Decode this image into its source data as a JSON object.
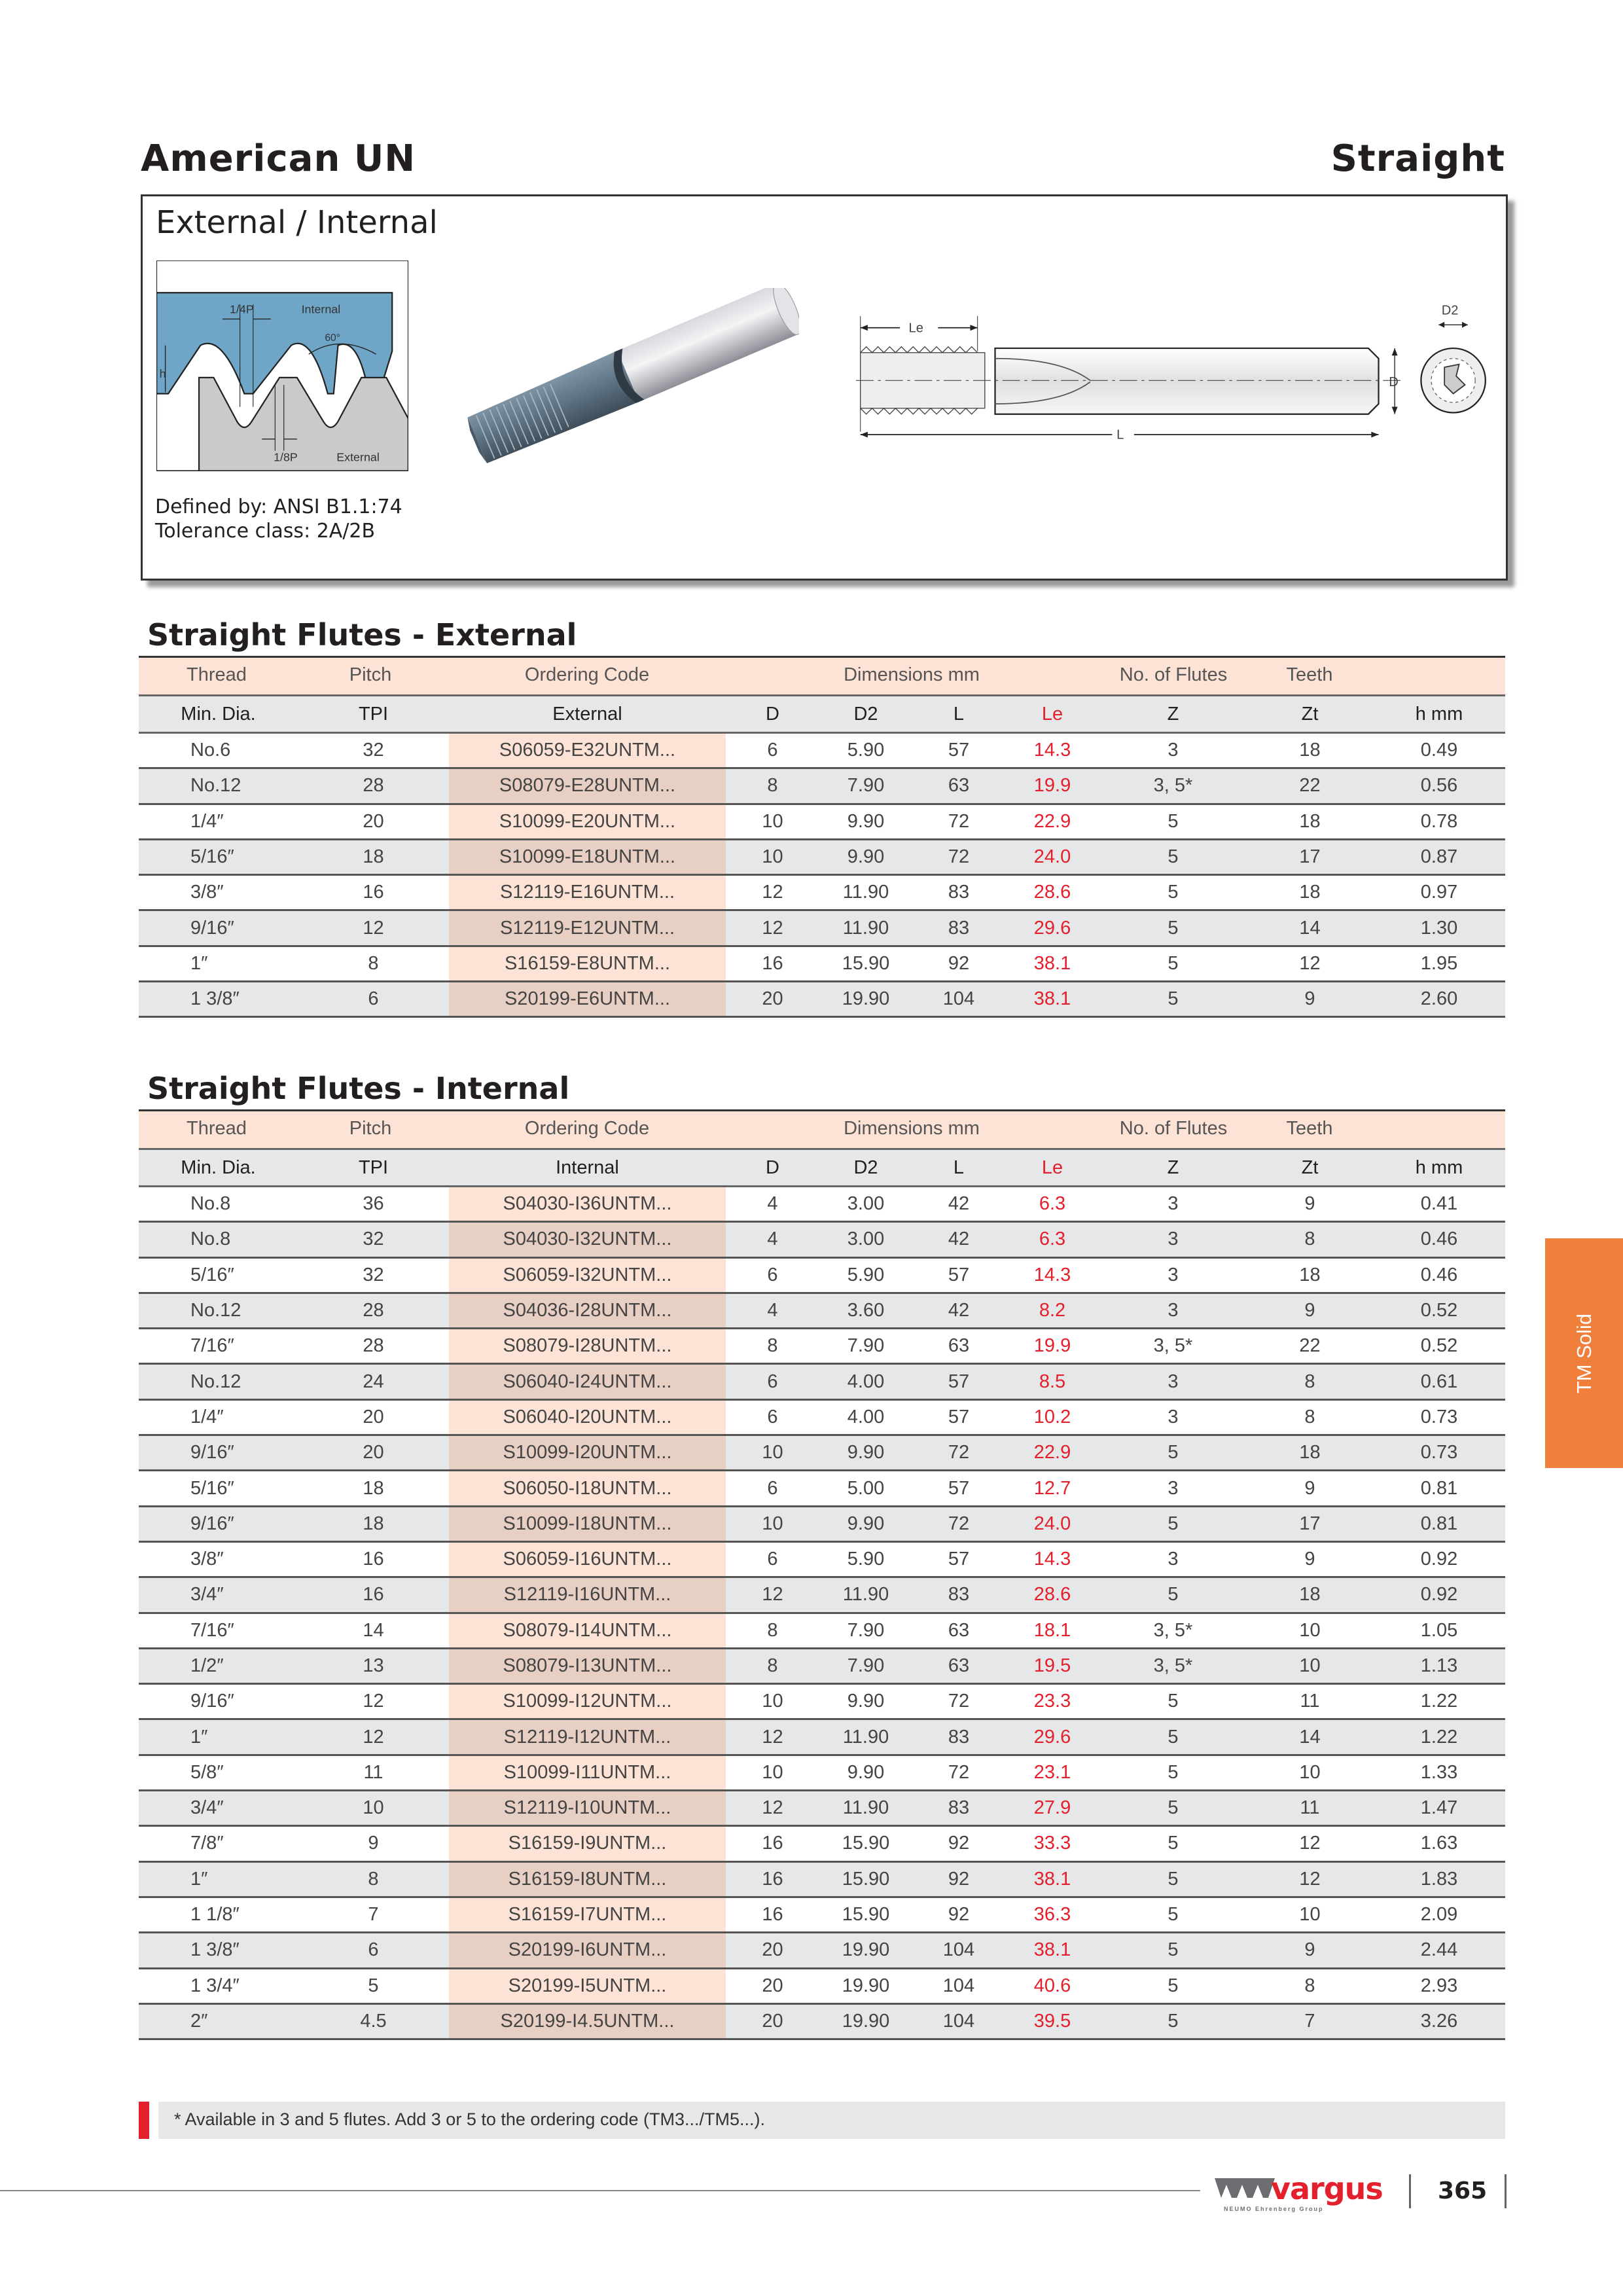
{
  "header": {
    "title_left": "American UN",
    "title_right": "Straight"
  },
  "intro": {
    "title": "External / Internal",
    "diagram_labels": {
      "quarter_p": "1/4P",
      "internal": "Internal",
      "angle": "60°",
      "h": "h",
      "eighth_p": "1/8P",
      "external": "External"
    },
    "drawing_labels": {
      "le": "Le",
      "l": "L",
      "d": "D",
      "d2": "D2"
    },
    "defined_by": "Defined by: ANSI B1.1:74",
    "tolerance": "Tolerance class: 2A/2B"
  },
  "colors": {
    "header_peach": "#fde3d5",
    "header_gray": "#e6e7e8",
    "le_red": "#e3202b",
    "side_tab_orange": "#f07f3c",
    "brand_red": "#e3202b"
  },
  "header_row1": [
    "Thread",
    "Pitch",
    "Ordering Code",
    "Dimensions mm",
    "No. of Flutes",
    "Teeth"
  ],
  "external": {
    "title": "Straight Flutes - External",
    "columns": [
      "Min. Dia.",
      "TPI",
      "External",
      "D",
      "D2",
      "L",
      "Le",
      "Z",
      "Zt",
      "h mm"
    ],
    "rows": [
      [
        "No.6",
        "32",
        "S06059-E32UNTM...",
        "6",
        "5.90",
        "57",
        "14.3",
        "3",
        "18",
        "0.49"
      ],
      [
        "No.12",
        "28",
        "S08079-E28UNTM...",
        "8",
        "7.90",
        "63",
        "19.9",
        "3, 5*",
        "22",
        "0.56"
      ],
      [
        "1/4″",
        "20",
        "S10099-E20UNTM...",
        "10",
        "9.90",
        "72",
        "22.9",
        "5",
        "18",
        "0.78"
      ],
      [
        "5/16″",
        "18",
        "S10099-E18UNTM...",
        "10",
        "9.90",
        "72",
        "24.0",
        "5",
        "17",
        "0.87"
      ],
      [
        "3/8″",
        "16",
        "S12119-E16UNTM...",
        "12",
        "11.90",
        "83",
        "28.6",
        "5",
        "18",
        "0.97"
      ],
      [
        "9/16″",
        "12",
        "S12119-E12UNTM...",
        "12",
        "11.90",
        "83",
        "29.6",
        "5",
        "14",
        "1.30"
      ],
      [
        "1″",
        "8",
        "S16159-E8UNTM...",
        "16",
        "15.90",
        "92",
        "38.1",
        "5",
        "12",
        "1.95"
      ],
      [
        "1 3/8″",
        "6",
        "S20199-E6UNTM...",
        "20",
        "19.90",
        "104",
        "38.1",
        "5",
        "9",
        "2.60"
      ]
    ]
  },
  "internal": {
    "title": "Straight Flutes - Internal",
    "columns": [
      "Min. Dia.",
      "TPI",
      "Internal",
      "D",
      "D2",
      "L",
      "Le",
      "Z",
      "Zt",
      "h mm"
    ],
    "rows": [
      [
        "No.8",
        "36",
        "S04030-I36UNTM...",
        "4",
        "3.00",
        "42",
        "6.3",
        "3",
        "9",
        "0.41"
      ],
      [
        "No.8",
        "32",
        "S04030-I32UNTM...",
        "4",
        "3.00",
        "42",
        "6.3",
        "3",
        "8",
        "0.46"
      ],
      [
        "5/16″",
        "32",
        "S06059-I32UNTM...",
        "6",
        "5.90",
        "57",
        "14.3",
        "3",
        "18",
        "0.46"
      ],
      [
        "No.12",
        "28",
        "S04036-I28UNTM...",
        "4",
        "3.60",
        "42",
        "8.2",
        "3",
        "9",
        "0.52"
      ],
      [
        "7/16″",
        "28",
        "S08079-I28UNTM...",
        "8",
        "7.90",
        "63",
        "19.9",
        "3, 5*",
        "22",
        "0.52"
      ],
      [
        "No.12",
        "24",
        "S06040-I24UNTM...",
        "6",
        "4.00",
        "57",
        "8.5",
        "3",
        "8",
        "0.61"
      ],
      [
        "1/4″",
        "20",
        "S06040-I20UNTM...",
        "6",
        "4.00",
        "57",
        "10.2",
        "3",
        "8",
        "0.73"
      ],
      [
        "9/16″",
        "20",
        "S10099-I20UNTM...",
        "10",
        "9.90",
        "72",
        "22.9",
        "5",
        "18",
        "0.73"
      ],
      [
        "5/16″",
        "18",
        "S06050-I18UNTM...",
        "6",
        "5.00",
        "57",
        "12.7",
        "3",
        "9",
        "0.81"
      ],
      [
        "9/16″",
        "18",
        "S10099-I18UNTM...",
        "10",
        "9.90",
        "72",
        "24.0",
        "5",
        "17",
        "0.81"
      ],
      [
        "3/8″",
        "16",
        "S06059-I16UNTM...",
        "6",
        "5.90",
        "57",
        "14.3",
        "3",
        "9",
        "0.92"
      ],
      [
        "3/4″",
        "16",
        "S12119-I16UNTM...",
        "12",
        "11.90",
        "83",
        "28.6",
        "5",
        "18",
        "0.92"
      ],
      [
        "7/16″",
        "14",
        "S08079-I14UNTM...",
        "8",
        "7.90",
        "63",
        "18.1",
        "3, 5*",
        "10",
        "1.05"
      ],
      [
        "1/2″",
        "13",
        "S08079-I13UNTM...",
        "8",
        "7.90",
        "63",
        "19.5",
        "3, 5*",
        "10",
        "1.13"
      ],
      [
        "9/16″",
        "12",
        "S10099-I12UNTM...",
        "10",
        "9.90",
        "72",
        "23.3",
        "5",
        "11",
        "1.22"
      ],
      [
        "1″",
        "12",
        "S12119-I12UNTM...",
        "12",
        "11.90",
        "83",
        "29.6",
        "5",
        "14",
        "1.22"
      ],
      [
        "5/8″",
        "11",
        "S10099-I11UNTM...",
        "10",
        "9.90",
        "72",
        "23.1",
        "5",
        "10",
        "1.33"
      ],
      [
        "3/4″",
        "10",
        "S12119-I10UNTM...",
        "12",
        "11.90",
        "83",
        "27.9",
        "5",
        "11",
        "1.47"
      ],
      [
        "7/8″",
        "9",
        "S16159-I9UNTM...",
        "16",
        "15.90",
        "92",
        "33.3",
        "5",
        "12",
        "1.63"
      ],
      [
        "1″",
        "8",
        "S16159-I8UNTM...",
        "16",
        "15.90",
        "92",
        "38.1",
        "5",
        "12",
        "1.83"
      ],
      [
        "1 1/8″",
        "7",
        "S16159-I7UNTM...",
        "16",
        "15.90",
        "92",
        "36.3",
        "5",
        "10",
        "2.09"
      ],
      [
        "1 3/8″",
        "6",
        "S20199-I6UNTM...",
        "20",
        "19.90",
        "104",
        "38.1",
        "5",
        "9",
        "2.44"
      ],
      [
        "1 3/4″",
        "5",
        "S20199-I5UNTM...",
        "20",
        "19.90",
        "104",
        "40.6",
        "5",
        "8",
        "2.93"
      ],
      [
        "2″",
        "4.5",
        "S20199-I4.5UNTM...",
        "20",
        "19.90",
        "104",
        "39.5",
        "5",
        "7",
        "3.26"
      ]
    ]
  },
  "side_tab": "TM Solid",
  "footnote": "*  Available in 3 and 5 flutes. Add 3 or 5 to the ordering code (TM3.../TM5...).",
  "footer": {
    "brand": "vargus",
    "brand_sub": "NEUMO Ehrenberg Group",
    "page_number": "365"
  }
}
